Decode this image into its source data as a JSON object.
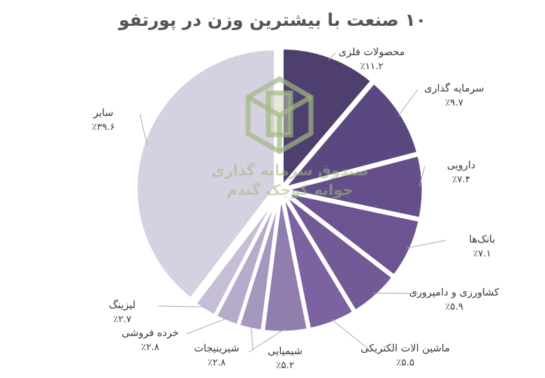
{
  "chart_data": {
    "type": "pie",
    "title": "۱۰ صنعت با بیشترین وزن در پورتفو",
    "start_angle": "12 o'clock",
    "direction": "clockwise",
    "slices": [
      {
        "label": "محصولات فلزی",
        "value": 11.2,
        "value_text": "٪۱۱.۲",
        "color": "#4e3f6e"
      },
      {
        "label": "سرمایه گذاری",
        "value": 9.7,
        "value_text": "٪۹.۷",
        "color": "#5c4880"
      },
      {
        "label": "دارویی",
        "value": 7.4,
        "value_text": "٪۷.۴",
        "color": "#654f8a"
      },
      {
        "label": "بانک‌ها",
        "value": 7.1,
        "value_text": "٪۷.۱",
        "color": "#6b5490"
      },
      {
        "label": "کشاورزی و دامپروری",
        "value": 5.9,
        "value_text": "٪۵.۹",
        "color": "#725a96"
      },
      {
        "label": "ماشین الات الکتریکی",
        "value": 5.5,
        "value_text": "٪۵.۵",
        "color": "#7c62a0"
      },
      {
        "label": "شیمیایی",
        "value": 5.2,
        "value_text": "٪۵.۲",
        "color": "#8f7eae"
      },
      {
        "label": "شیرینیجات",
        "value": 2.8,
        "value_text": "٪۲.۸",
        "color": "#a596bd"
      },
      {
        "label": "خرده فروشی",
        "value": 2.8,
        "value_text": "٪۲.۸",
        "color": "#b5abca"
      },
      {
        "label": "لیزینگ",
        "value": 2.7,
        "value_text": "٪۲.۷",
        "color": "#c5bed6"
      },
      {
        "label": "سایر",
        "value": 39.6,
        "value_text": "٪۳۹.۶",
        "color": "#d6d1e1"
      }
    ],
    "legend": "none (direct labels with leader lines)"
  },
  "watermark": {
    "line1": "صندوق سرمایه گذاری",
    "line2": "جوانه کوچک گندم",
    "color": "#a0b982"
  }
}
